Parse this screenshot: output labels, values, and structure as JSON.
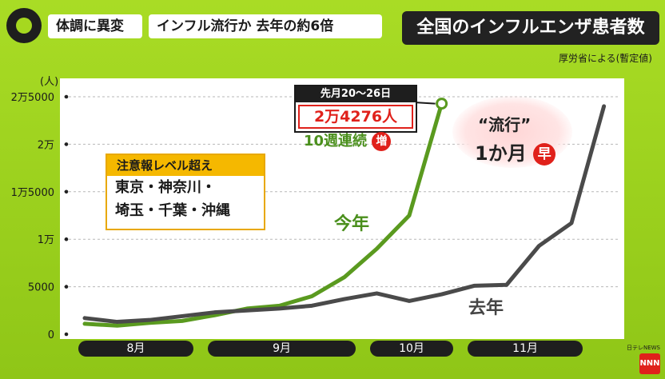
{
  "header": {
    "tag1": "体調に異変",
    "tag2": "インフル流行か  去年の約6倍",
    "title": "全国のインフルエンザ患者数",
    "source": "厚労省による(暫定値)"
  },
  "callout": {
    "period": "先月20〜26日",
    "value": "2万4276人"
  },
  "weeks": {
    "text": "10週連続",
    "badge": "増"
  },
  "legend_box": {
    "title": "注意報レベル超え",
    "line1": "東京・神奈川・",
    "line2": "埼玉・千葉・沖縄"
  },
  "bubble": {
    "top": "“流行”",
    "bottom_text": "1か月",
    "badge": "早"
  },
  "logo_text": "NNN",
  "network": "日テレNEWS",
  "chart_data": {
    "type": "line",
    "unit": "(人)",
    "ylim": [
      0,
      25000
    ],
    "yticks": [
      {
        "value": 0,
        "label": "0"
      },
      {
        "value": 5000,
        "label": "5000"
      },
      {
        "value": 10000,
        "label": "1万"
      },
      {
        "value": 15000,
        "label": "1万5000"
      },
      {
        "value": 20000,
        "label": "2万"
      },
      {
        "value": 25000,
        "label": "2万5000"
      }
    ],
    "months": [
      {
        "label": "8月",
        "start": 0,
        "end": 3
      },
      {
        "label": "9月",
        "start": 4,
        "end": 8
      },
      {
        "label": "10月",
        "start": 9,
        "end": 11
      },
      {
        "label": "11月",
        "start": 12,
        "end": 15
      }
    ],
    "series": [
      {
        "name": "今年",
        "color": "#5a9a1f",
        "values": [
          1100,
          900,
          1200,
          1400,
          2000,
          2700,
          3000,
          4000,
          6000,
          9000,
          12500,
          24276
        ]
      },
      {
        "name": "去年",
        "color": "#4a4a4a",
        "values": [
          1700,
          1300,
          1500,
          1900,
          2300,
          2500,
          2700,
          3000,
          3700,
          4300,
          3500,
          4200,
          5100,
          5200,
          9300,
          11700,
          24000
        ]
      }
    ]
  }
}
